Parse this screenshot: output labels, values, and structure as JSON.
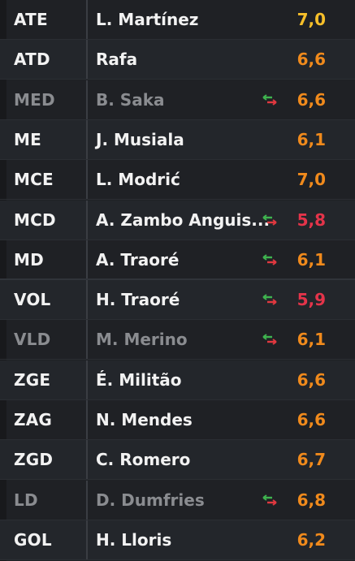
{
  "colors": {
    "rating_gold": "#f6bf2a",
    "rating_orange": "#f08a1c",
    "rating_red": "#e4344a",
    "swap_green": "#3fb34f",
    "swap_red": "#e0383f"
  },
  "players": [
    {
      "pos": "ATE",
      "name": "L. Martínez",
      "rating": "7,0",
      "rating_color": "#f6bf2a",
      "dim": false,
      "swap": false
    },
    {
      "pos": "ATD",
      "name": "Rafa",
      "rating": "6,6",
      "rating_color": "#f08a1c",
      "dim": false,
      "swap": false
    },
    {
      "pos": "MED",
      "name": "B. Saka",
      "rating": "6,6",
      "rating_color": "#f08a1c",
      "dim": true,
      "swap": true
    },
    {
      "pos": "ME",
      "name": "J. Musiala",
      "rating": "6,1",
      "rating_color": "#f08a1c",
      "dim": false,
      "swap": false
    },
    {
      "pos": "MCE",
      "name": "L. Modrić",
      "rating": "7,0",
      "rating_color": "#f08a1c",
      "dim": false,
      "swap": false
    },
    {
      "pos": "MCD",
      "name": "A. Zambo Anguis...",
      "rating": "5,8",
      "rating_color": "#e4344a",
      "dim": false,
      "swap": true
    },
    {
      "pos": "MD",
      "name": "A. Traoré",
      "rating": "6,1",
      "rating_color": "#f08a1c",
      "dim": false,
      "swap": true
    },
    {
      "pos": "VOL",
      "name": "H. Traoré",
      "rating": "5,9",
      "rating_color": "#e4344a",
      "dim": false,
      "swap": true
    },
    {
      "pos": "VLD",
      "name": "M. Merino",
      "rating": "6,1",
      "rating_color": "#f08a1c",
      "dim": true,
      "swap": true
    },
    {
      "pos": "ZGE",
      "name": "É. Militão",
      "rating": "6,6",
      "rating_color": "#f08a1c",
      "dim": false,
      "swap": false
    },
    {
      "pos": "ZAG",
      "name": "N. Mendes",
      "rating": "6,6",
      "rating_color": "#f08a1c",
      "dim": false,
      "swap": false
    },
    {
      "pos": "ZGD",
      "name": "C. Romero",
      "rating": "6,7",
      "rating_color": "#f08a1c",
      "dim": false,
      "swap": false
    },
    {
      "pos": "LD",
      "name": "D. Dumfries",
      "rating": "6,8",
      "rating_color": "#f08a1c",
      "dim": true,
      "swap": true
    },
    {
      "pos": "GOL",
      "name": "H. Lloris",
      "rating": "6,2",
      "rating_color": "#f08a1c",
      "dim": false,
      "swap": false
    }
  ]
}
